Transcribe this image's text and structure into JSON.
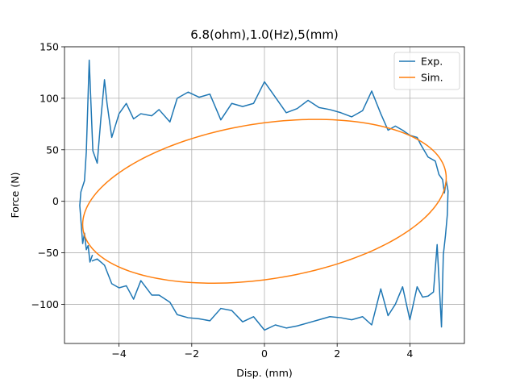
{
  "chart_data": {
    "type": "line",
    "title": "6.8(ohm),1.0(Hz),5(mm)",
    "xlabel": "Disp. (mm)",
    "ylabel": "Force (N)",
    "xlim": [
      -5.5,
      5.5
    ],
    "ylim": [
      -138,
      150
    ],
    "xticks": [
      -4,
      -2,
      0,
      2,
      4
    ],
    "xtick_labels": [
      "−4",
      "−2",
      "0",
      "2",
      "4"
    ],
    "yticks": [
      -100,
      -50,
      0,
      50,
      100,
      150
    ],
    "ytick_labels": [
      "−100",
      "−50",
      "0",
      "50",
      "100",
      "150"
    ],
    "grid": true,
    "legend": "top-right",
    "series": [
      {
        "name": "Exp.",
        "color": "#1f77b4",
        "points": [
          [
            -4.73,
            -52
          ],
          [
            -4.8,
            -59
          ],
          [
            -4.85,
            -43
          ],
          [
            -4.9,
            -47
          ],
          [
            -4.95,
            -31
          ],
          [
            -5.0,
            -41
          ],
          [
            -5.08,
            -4
          ],
          [
            -5.05,
            9
          ],
          [
            -4.95,
            20
          ],
          [
            -4.9,
            48
          ],
          [
            -4.82,
            137
          ],
          [
            -4.72,
            49
          ],
          [
            -4.6,
            37
          ],
          [
            -4.5,
            80
          ],
          [
            -4.4,
            118
          ],
          [
            -4.33,
            95
          ],
          [
            -4.2,
            62
          ],
          [
            -4.0,
            85
          ],
          [
            -3.8,
            95
          ],
          [
            -3.6,
            80
          ],
          [
            -3.4,
            85
          ],
          [
            -3.1,
            83
          ],
          [
            -2.9,
            89
          ],
          [
            -2.6,
            77
          ],
          [
            -2.4,
            100
          ],
          [
            -2.1,
            106
          ],
          [
            -1.8,
            101
          ],
          [
            -1.5,
            104
          ],
          [
            -1.2,
            79
          ],
          [
            -0.9,
            95
          ],
          [
            -0.6,
            92
          ],
          [
            -0.3,
            95
          ],
          [
            0.0,
            116
          ],
          [
            0.3,
            101
          ],
          [
            0.6,
            86
          ],
          [
            0.9,
            90
          ],
          [
            1.2,
            98
          ],
          [
            1.5,
            91
          ],
          [
            1.8,
            89
          ],
          [
            2.1,
            86
          ],
          [
            2.4,
            82
          ],
          [
            2.7,
            88
          ],
          [
            2.95,
            107
          ],
          [
            3.2,
            85
          ],
          [
            3.4,
            69
          ],
          [
            3.6,
            73
          ],
          [
            3.8,
            69
          ],
          [
            4.0,
            64
          ],
          [
            4.2,
            62
          ],
          [
            4.3,
            55
          ],
          [
            4.5,
            43
          ],
          [
            4.7,
            39
          ],
          [
            4.8,
            26
          ],
          [
            4.9,
            21
          ],
          [
            4.95,
            8
          ],
          [
            5.0,
            20
          ],
          [
            5.05,
            10
          ],
          [
            5.03,
            -13
          ],
          [
            4.98,
            -33
          ],
          [
            4.92,
            -52
          ],
          [
            4.87,
            -122
          ],
          [
            4.75,
            -42
          ],
          [
            4.65,
            -88
          ],
          [
            4.5,
            -92
          ],
          [
            4.35,
            -93
          ],
          [
            4.2,
            -83
          ],
          [
            4.0,
            -115
          ],
          [
            3.8,
            -83
          ],
          [
            3.6,
            -100
          ],
          [
            3.4,
            -111
          ],
          [
            3.2,
            -85
          ],
          [
            2.95,
            -120
          ],
          [
            2.7,
            -112
          ],
          [
            2.4,
            -115
          ],
          [
            2.1,
            -113
          ],
          [
            1.8,
            -112
          ],
          [
            1.5,
            -115
          ],
          [
            1.2,
            -118
          ],
          [
            0.9,
            -121
          ],
          [
            0.6,
            -123
          ],
          [
            0.3,
            -120
          ],
          [
            0.0,
            -125
          ],
          [
            -0.3,
            -112
          ],
          [
            -0.6,
            -117
          ],
          [
            -0.9,
            -106
          ],
          [
            -1.2,
            -104
          ],
          [
            -1.5,
            -116
          ],
          [
            -1.8,
            -114
          ],
          [
            -2.1,
            -113
          ],
          [
            -2.4,
            -110
          ],
          [
            -2.6,
            -98
          ],
          [
            -2.9,
            -91
          ],
          [
            -3.1,
            -91
          ],
          [
            -3.4,
            -77
          ],
          [
            -3.6,
            -95
          ],
          [
            -3.8,
            -82
          ],
          [
            -4.0,
            -84
          ],
          [
            -4.2,
            -80
          ],
          [
            -4.4,
            -62
          ],
          [
            -4.6,
            -56
          ],
          [
            -4.75,
            -58
          ]
        ]
      },
      {
        "name": "Sim.",
        "color": "#ff7f0e",
        "ellipse": {
          "amplitude": 5.0,
          "force_peak": 79.5,
          "phase_deg": 16.5
        }
      }
    ]
  }
}
